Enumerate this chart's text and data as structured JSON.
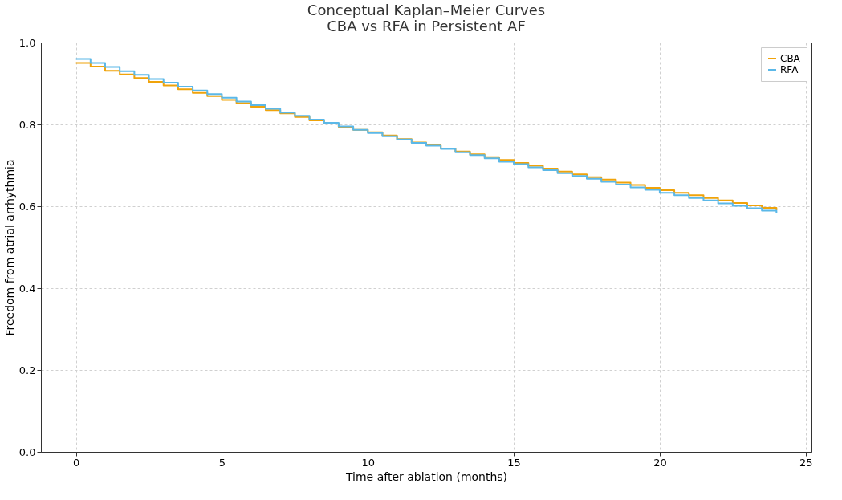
{
  "chart_data": {
    "type": "step",
    "title": "Conceptual Kaplan–Meier Curves\nCBA vs RFA in Persistent AF",
    "xlabel": "Time after ablation (months)",
    "ylabel": "Freedom from atrial arrhythmia",
    "x": [
      0,
      0.5,
      1,
      1.5,
      2,
      2.5,
      3,
      3.5,
      4,
      4.5,
      5,
      5.5,
      6,
      6.5,
      7,
      7.5,
      8,
      8.5,
      9,
      9.5,
      10,
      10.5,
      11,
      11.5,
      12,
      12.5,
      13,
      13.5,
      14,
      14.5,
      15,
      15.5,
      16,
      16.5,
      17,
      17.5,
      18,
      18.5,
      19,
      19.5,
      20,
      20.5,
      21,
      21.5,
      22,
      22.5,
      23,
      23.5,
      24
    ],
    "series": [
      {
        "name": "CBA",
        "color": "#f0a30a",
        "values": [
          0.95,
          0.941,
          0.931,
          0.922,
          0.913,
          0.904,
          0.895,
          0.886,
          0.877,
          0.869,
          0.86,
          0.852,
          0.843,
          0.835,
          0.827,
          0.818,
          0.81,
          0.802,
          0.794,
          0.787,
          0.781,
          0.773,
          0.764,
          0.756,
          0.749,
          0.741,
          0.734,
          0.727,
          0.72,
          0.713,
          0.706,
          0.699,
          0.692,
          0.685,
          0.678,
          0.671,
          0.665,
          0.658,
          0.652,
          0.645,
          0.639,
          0.633,
          0.627,
          0.62,
          0.614,
          0.608,
          0.602,
          0.596,
          0.59
        ]
      },
      {
        "name": "RFA",
        "color": "#5bb8e8",
        "values": [
          0.96,
          0.95,
          0.94,
          0.93,
          0.921,
          0.911,
          0.902,
          0.892,
          0.883,
          0.874,
          0.865,
          0.856,
          0.847,
          0.838,
          0.829,
          0.821,
          0.812,
          0.804,
          0.795,
          0.787,
          0.779,
          0.771,
          0.763,
          0.755,
          0.748,
          0.74,
          0.732,
          0.725,
          0.717,
          0.709,
          0.703,
          0.695,
          0.688,
          0.681,
          0.674,
          0.667,
          0.66,
          0.653,
          0.646,
          0.64,
          0.633,
          0.627,
          0.62,
          0.614,
          0.607,
          0.601,
          0.595,
          0.589,
          0.583
        ]
      }
    ],
    "xlim": [
      -1.2,
      25.2
    ],
    "xticks": [
      0,
      5,
      10,
      15,
      20,
      25
    ],
    "ylim": [
      0,
      1
    ],
    "yticks": [
      {
        "value": 0,
        "label": "0.0"
      },
      {
        "value": 0.2,
        "label": "0.2"
      },
      {
        "value": 0.4,
        "label": "0.4"
      },
      {
        "value": 0.6,
        "label": "0.6"
      },
      {
        "value": 0.8,
        "label": "0.8"
      },
      {
        "value": 1,
        "label": "1.0"
      }
    ],
    "grid": true,
    "legend": "top right",
    "line_style": "solid",
    "marker": "none"
  }
}
